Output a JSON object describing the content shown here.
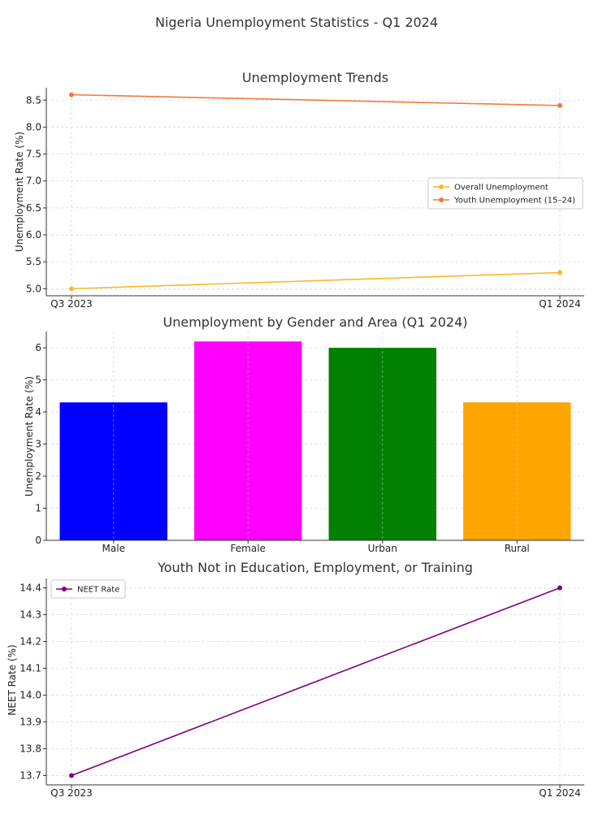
{
  "figure": {
    "suptitle": "Nigeria Unemployment Statistics - Q1 2024"
  },
  "chart_data": [
    {
      "type": "line",
      "title": "Unemployment Trends",
      "xlabel": "",
      "ylabel": "Unemployment Rate (%)",
      "x": [
        "Q3 2023",
        "Q1 2024"
      ],
      "ylim": [
        4.87,
        8.73
      ],
      "yticks": [
        5.0,
        5.5,
        6.0,
        6.5,
        7.0,
        7.5,
        8.0,
        8.5
      ],
      "yticks_text": [
        "5.0",
        "5.5",
        "6.0",
        "6.5",
        "7.0",
        "7.5",
        "8.0",
        "8.5"
      ],
      "grid": true,
      "legend": "center-right",
      "series": [
        {
          "name": "Overall Unemployment",
          "values": [
            5.0,
            5.3
          ],
          "color": "#fbb829"
        },
        {
          "name": "Youth Unemployment (15–24)",
          "values": [
            8.6,
            8.4
          ],
          "color": "#f07b3f"
        }
      ]
    },
    {
      "type": "bar",
      "title": "Unemployment by Gender and Area (Q1 2024)",
      "xlabel": "",
      "ylabel": "Unemployment Rate (%)",
      "categories": [
        "Male",
        "Female",
        "Urban",
        "Rural"
      ],
      "values": [
        4.3,
        6.2,
        6.0,
        4.3
      ],
      "colors": [
        "#0000ff",
        "#ff00ff",
        "#008000",
        "#ffa500"
      ],
      "ylim": [
        0,
        6.51
      ],
      "yticks": [
        0,
        1,
        2,
        3,
        4,
        5,
        6
      ],
      "yticks_text": [
        "0",
        "1",
        "2",
        "3",
        "4",
        "5",
        "6"
      ],
      "grid": true
    },
    {
      "type": "line",
      "title": "Youth Not in Education, Employment, or Training",
      "xlabel": "",
      "ylabel": "NEET Rate (%)",
      "x": [
        "Q3 2023",
        "Q1 2024"
      ],
      "ylim": [
        13.665,
        14.435
      ],
      "yticks": [
        13.7,
        13.8,
        13.9,
        14.0,
        14.1,
        14.2,
        14.3,
        14.4
      ],
      "yticks_text": [
        "13.7",
        "13.8",
        "13.9",
        "14.0",
        "14.1",
        "14.2",
        "14.3",
        "14.4"
      ],
      "grid": true,
      "legend": "top-left",
      "series": [
        {
          "name": "NEET Rate",
          "values": [
            13.7,
            14.4
          ],
          "color": "#800080"
        }
      ]
    }
  ]
}
